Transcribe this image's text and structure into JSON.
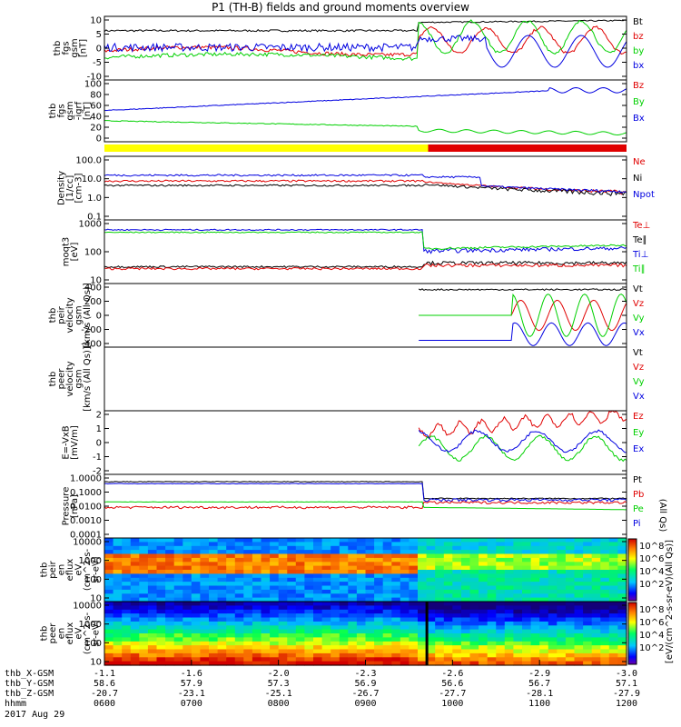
{
  "title": "P1 (TH-B) fields and ground moments overview",
  "date": "2017 Aug 29",
  "colors": {
    "black": "#000000",
    "red": "#e00000",
    "green": "#00d000",
    "blue": "#0000e0",
    "yellow": "#ffff00"
  },
  "chart_data": [
    {
      "type": "line",
      "ylabel": [
        "thb",
        "fgs",
        "gsm",
        "[nT]"
      ],
      "yticks": [
        "10",
        "5",
        "0",
        "-5",
        "-10"
      ],
      "ylim": [
        -10,
        10
      ],
      "legend": [
        "Bt",
        "bz",
        "by",
        "bx"
      ],
      "legend_colors": [
        "black",
        "red",
        "green",
        "blue"
      ]
    },
    {
      "type": "line",
      "ylabel": [
        "thb",
        "fgs",
        "gsm",
        "-igrf",
        "[nT]"
      ],
      "yticks": [
        "100",
        "80",
        "60",
        "40",
        "20",
        "0"
      ],
      "ylim": [
        -10,
        110
      ],
      "legend": [
        "Bz",
        "By",
        "Bx"
      ],
      "legend_colors": [
        "red",
        "green",
        "blue"
      ]
    },
    {
      "type": "line",
      "ylabel": [
        "Density",
        "[1/cc]",
        "[cm-3]"
      ],
      "yticks": [
        "100.0",
        "10.0",
        "1.0",
        "0.1"
      ],
      "ylim": [
        0.05,
        200
      ],
      "log": true,
      "legend": [
        "Ne",
        "Ni",
        "Npot"
      ],
      "legend_colors": [
        "red",
        "black",
        "blue"
      ]
    },
    {
      "type": "line",
      "ylabel": [
        "moqt3",
        "[eV]"
      ],
      "yticks": [
        "1000",
        "100",
        "10"
      ],
      "ylim": [
        4,
        1300
      ],
      "log": true,
      "legend": [
        "Te⊥",
        "Te∥",
        "Ti⊥",
        "Ti∥"
      ],
      "legend_colors": [
        "red",
        "black",
        "blue",
        "green"
      ]
    },
    {
      "type": "line",
      "ylabel": [
        "thb",
        "peir",
        "velocity",
        "gsm",
        "[km/s (All Qs)]"
      ],
      "yticks": [
        "400",
        "200",
        "0",
        "-200",
        "-400"
      ],
      "ylim": [
        -420,
        420
      ],
      "legend": [
        "Vt",
        "Vz",
        "Vy",
        "Vx"
      ],
      "legend_colors": [
        "black",
        "red",
        "green",
        "blue"
      ]
    },
    {
      "type": "line",
      "ylabel": [
        "thb",
        "peer",
        "velocity",
        "gsm",
        "[km/s (All Qs)]"
      ],
      "yticks": [],
      "legend": [
        "Vt",
        "Vz",
        "Vy",
        "Vx"
      ],
      "legend_colors": [
        "black",
        "red",
        "green",
        "blue"
      ]
    },
    {
      "type": "line",
      "ylabel": [
        "E=-VxB",
        "[mV/m]"
      ],
      "yticks": [
        "2",
        "1",
        "0",
        "-1",
        "-2"
      ],
      "ylim": [
        -2.2,
        2.2
      ],
      "legend": [
        "Ez",
        "Ey",
        "Ex"
      ],
      "legend_colors": [
        "red",
        "green",
        "blue"
      ]
    },
    {
      "type": "line",
      "ylabel": [
        "Pressure",
        "[nPa]"
      ],
      "yticks": [
        "1.0000",
        "0.1000",
        "0.0100",
        "0.0010",
        "0.0001"
      ],
      "ylim": [
        0.0001,
        1
      ],
      "log": true,
      "legend": [
        "Pt",
        "Pb",
        "Pe",
        "Pi"
      ],
      "legend_colors": [
        "black",
        "red",
        "green",
        "blue"
      ],
      "legend_note": "(All Qs)"
    },
    {
      "type": "heatmap",
      "ylabel": [
        "thb",
        "peir",
        "en",
        "eflux",
        "eV",
        "(cm^2-s-",
        "sr-eV)"
      ],
      "yticks": [
        "10000",
        "1000",
        "100",
        "10"
      ],
      "ylim": [
        5,
        30000
      ],
      "log": true,
      "colorbar_ticks": [
        "10^8",
        "10^6",
        "10^4",
        "10^2"
      ],
      "colorbar_label": "[eV/(cm^2-s-sr-eV)(All Qs)]"
    },
    {
      "type": "heatmap",
      "ylabel": [
        "thb",
        "peer",
        "en",
        "eflux",
        "eV",
        "(cm^2-s-",
        "sr-eV)"
      ],
      "yticks": [
        "10000",
        "1000",
        "100",
        "10"
      ],
      "ylim": [
        5,
        30000
      ],
      "log": true,
      "colorbar_ticks": [
        "10^8",
        "10^6",
        "10^4",
        "10^2"
      ],
      "colorbar_label": "[eV/(cm^2-s-sr-eV)]"
    }
  ],
  "x_axis": {
    "row_labels": [
      "thb_X-GSM",
      "thb_Y-GSM",
      "thb_Z-GSM",
      "hhmm"
    ],
    "ticks": [
      {
        "X": "-1.1",
        "Y": "58.6",
        "Z": "-20.7",
        "t": "0600"
      },
      {
        "X": "-1.6",
        "Y": "57.9",
        "Z": "-23.1",
        "t": "0700"
      },
      {
        "X": "-2.0",
        "Y": "57.3",
        "Z": "-25.1",
        "t": "0800"
      },
      {
        "X": "-2.3",
        "Y": "56.9",
        "Z": "-26.7",
        "t": "0900"
      },
      {
        "X": "-2.6",
        "Y": "56.6",
        "Z": "-27.7",
        "t": "1000"
      },
      {
        "X": "-2.9",
        "Y": "56.7",
        "Z": "-28.1",
        "t": "1100"
      },
      {
        "X": "-3.0",
        "Y": "57.1",
        "Z": "-27.9",
        "t": "1200"
      }
    ]
  }
}
